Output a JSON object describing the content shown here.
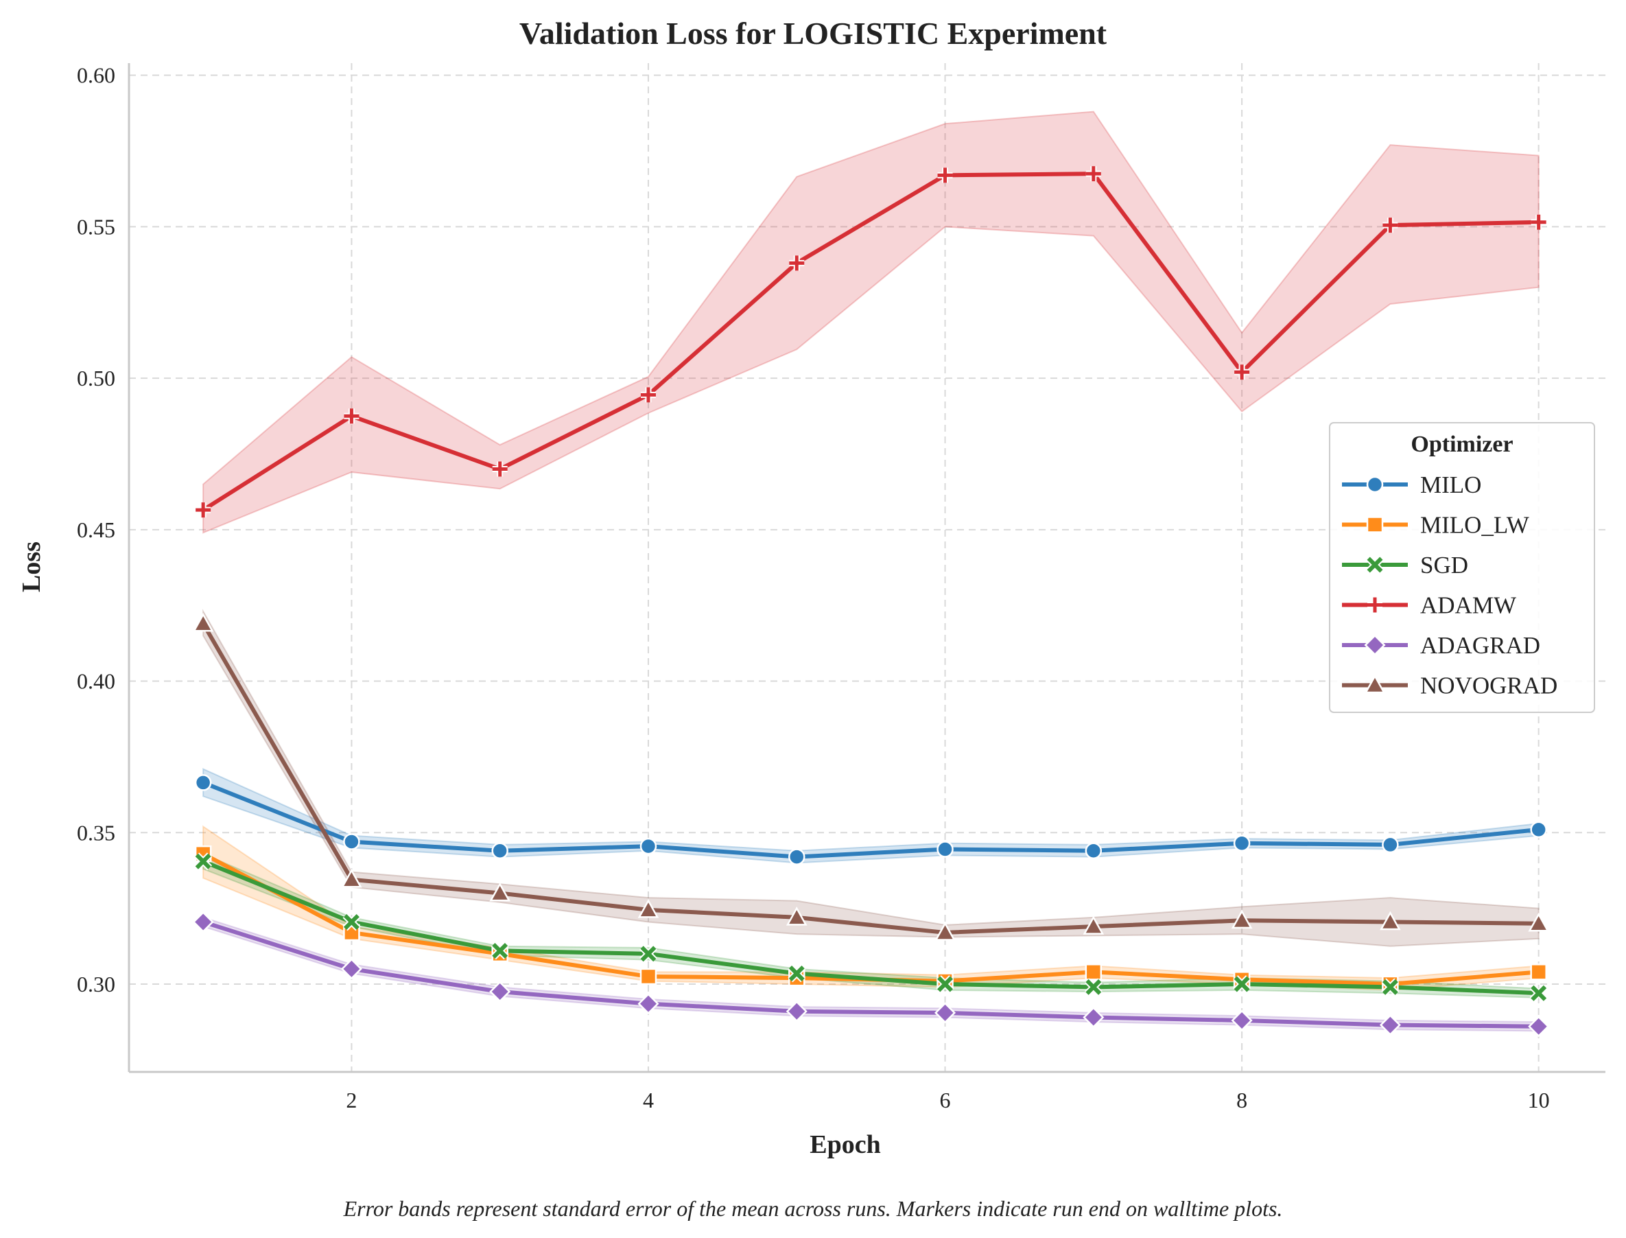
{
  "chart_data": {
    "type": "line",
    "title": "Validation Loss for LOGISTIC Experiment",
    "xlabel": "Epoch",
    "ylabel": "Loss",
    "xlim": [
      0.5,
      10.45
    ],
    "ylim": [
      0.271,
      0.604
    ],
    "x_ticks": [
      2,
      4,
      6,
      8,
      10
    ],
    "y_ticks": [
      0.3,
      0.35,
      0.4,
      0.45,
      0.5,
      0.55,
      0.6
    ],
    "grid": true,
    "legend": {
      "title": "Optimizer",
      "placement": "center-right"
    },
    "caption": "Error bands represent standard error of the mean across runs. Markers indicate run end on walltime plots.",
    "x": [
      1,
      2,
      3,
      4,
      5,
      6,
      7,
      8,
      9,
      10
    ],
    "series": [
      {
        "name": "MILO",
        "color": "#2f7ebc",
        "marker": "circle",
        "values": [
          0.3665,
          0.347,
          0.344,
          0.3455,
          0.342,
          0.3445,
          0.344,
          0.3465,
          0.346,
          0.351
        ],
        "lower": [
          0.362,
          0.345,
          0.342,
          0.344,
          0.34,
          0.3425,
          0.342,
          0.345,
          0.3445,
          0.349
        ],
        "upper": [
          0.371,
          0.349,
          0.346,
          0.347,
          0.344,
          0.3465,
          0.346,
          0.348,
          0.3475,
          0.353
        ]
      },
      {
        "name": "MILO_LW",
        "color": "#ff8c1a",
        "marker": "square",
        "values": [
          0.343,
          0.317,
          0.31,
          0.3025,
          0.302,
          0.301,
          0.304,
          0.3015,
          0.3,
          0.304
        ],
        "lower": [
          0.335,
          0.315,
          0.308,
          0.301,
          0.3,
          0.299,
          0.302,
          0.3,
          0.298,
          0.302
        ],
        "upper": [
          0.352,
          0.319,
          0.312,
          0.304,
          0.304,
          0.303,
          0.306,
          0.303,
          0.302,
          0.306
        ]
      },
      {
        "name": "SGD",
        "color": "#3a9a3a",
        "marker": "x",
        "values": [
          0.3405,
          0.3205,
          0.311,
          0.31,
          0.3035,
          0.3,
          0.299,
          0.3,
          0.299,
          0.297
        ],
        "lower": [
          0.338,
          0.319,
          0.3095,
          0.308,
          0.302,
          0.298,
          0.2975,
          0.298,
          0.297,
          0.2955
        ],
        "upper": [
          0.343,
          0.322,
          0.3125,
          0.312,
          0.305,
          0.302,
          0.3005,
          0.302,
          0.301,
          0.2985
        ]
      },
      {
        "name": "ADAMW",
        "color": "#d62f35",
        "marker": "plus",
        "values": [
          0.4565,
          0.4875,
          0.47,
          0.4945,
          0.538,
          0.567,
          0.5675,
          0.502,
          0.5505,
          0.5515
        ],
        "lower": [
          0.449,
          0.469,
          0.4635,
          0.4885,
          0.5095,
          0.55,
          0.547,
          0.489,
          0.5245,
          0.53
        ],
        "upper": [
          0.465,
          0.507,
          0.478,
          0.5005,
          0.5665,
          0.584,
          0.588,
          0.515,
          0.577,
          0.5735
        ]
      },
      {
        "name": "ADAGRAD",
        "color": "#9467c0",
        "marker": "diamond",
        "values": [
          0.3205,
          0.305,
          0.2975,
          0.2935,
          0.291,
          0.2905,
          0.289,
          0.288,
          0.2865,
          0.286
        ],
        "lower": [
          0.319,
          0.3035,
          0.296,
          0.292,
          0.2895,
          0.289,
          0.2875,
          0.2865,
          0.285,
          0.2845
        ],
        "upper": [
          0.322,
          0.3065,
          0.299,
          0.295,
          0.2925,
          0.292,
          0.2905,
          0.2895,
          0.288,
          0.2875
        ]
      },
      {
        "name": "NOVOGRAD",
        "color": "#8b5a4e",
        "marker": "triangle",
        "values": [
          0.419,
          0.3345,
          0.33,
          0.3245,
          0.322,
          0.317,
          0.319,
          0.321,
          0.3205,
          0.32
        ],
        "lower": [
          0.415,
          0.332,
          0.327,
          0.3205,
          0.3165,
          0.3155,
          0.316,
          0.3165,
          0.3125,
          0.315
        ],
        "upper": [
          0.423,
          0.337,
          0.333,
          0.3285,
          0.3275,
          0.3195,
          0.322,
          0.3255,
          0.3285,
          0.325
        ]
      }
    ]
  }
}
